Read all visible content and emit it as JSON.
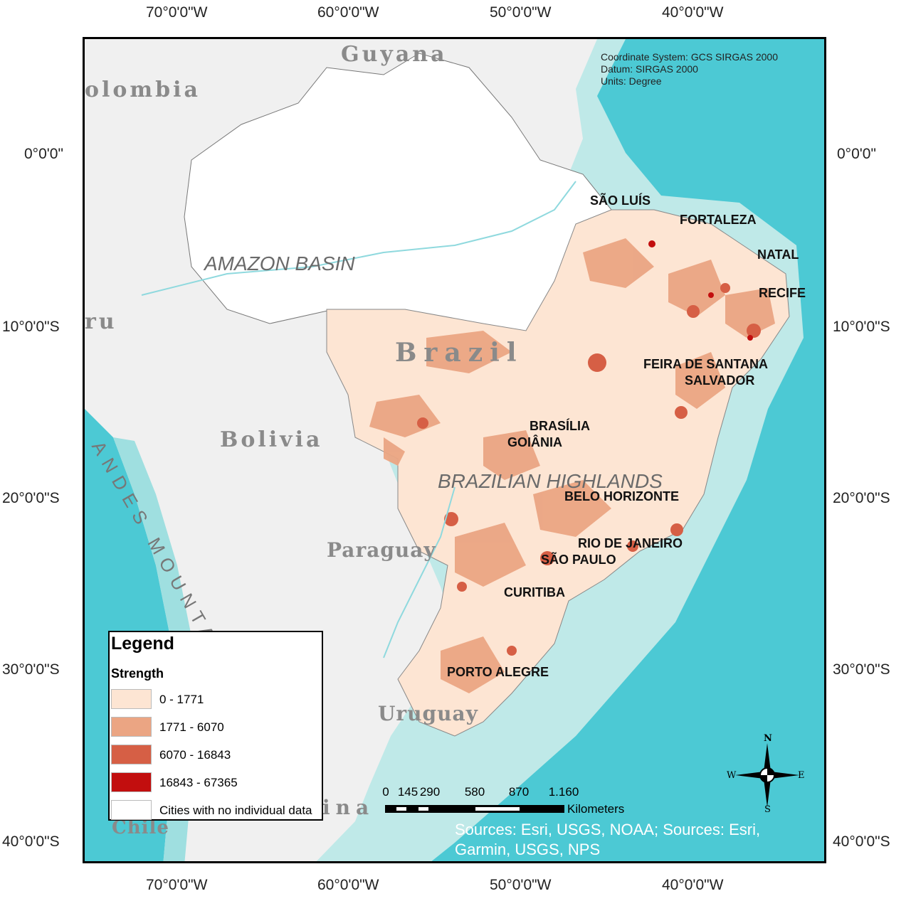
{
  "axes": {
    "top_lon_labels": [
      "70°0'0\"W",
      "60°0'0\"W",
      "50°0'0\"W",
      "40°0'0\"W"
    ],
    "bottom_lon_labels": [
      "70°0'0\"W",
      "60°0'0\"W",
      "50°0'0\"W",
      "40°0'0\"W"
    ],
    "left_lat_labels": [
      "0°0'0\"",
      "10°0'0\"S",
      "20°0'0\"S",
      "30°0'0\"S",
      "40°0'0\"S"
    ],
    "right_lat_labels": [
      "0°0'0\"",
      "10°0'0\"S",
      "20°0'0\"S",
      "30°0'0\"S",
      "40°0'0\"S"
    ]
  },
  "metadata": {
    "coordinate_system": "Coordinate System: GCS SIRGAS 2000",
    "datum": "Datum: SIRGAS 2000",
    "units": "Units: Degree"
  },
  "countries": {
    "guyana": "Guyana",
    "colombia": "olombia",
    "peru": "ru",
    "brazil": "Brazil",
    "bolivia": "Bolivia",
    "paraguay": "Paraguay",
    "uruguay": "Uruguay",
    "argentina": "ina",
    "chile": "Chile"
  },
  "regions": {
    "amazon": "AMAZON BASIN",
    "highlands": "BRAZILIAN HIGHLANDS",
    "andes": "ANDES MOUNTAINS"
  },
  "cities": {
    "sao_luis": "SÃO LUÍS",
    "fortaleza": "FORTALEZA",
    "natal": "NATAL",
    "recife": "RECIFE",
    "feira": "FEIRA DE SANTANA",
    "salvador": "SALVADOR",
    "brasilia": "BRASÍLIA",
    "goiania": "GOIÂNIA",
    "belo_horizonte": "BELO HORIZONTE",
    "rio": "RIO DE JANEIRO",
    "sao_paulo": "SÃO PAULO",
    "curitiba": "CURITIBA",
    "porto_alegre": "PORTO ALEGRE"
  },
  "legend": {
    "title": "Legend",
    "subtitle": "Strength",
    "items": [
      {
        "label": "0 - 1771",
        "color": "#fde5d3"
      },
      {
        "label": "1771 - 6070",
        "color": "#eba583"
      },
      {
        "label": "6070 - 16843",
        "color": "#d65f45"
      },
      {
        "label": "16843 - 67365",
        "color": "#c20e0e"
      },
      {
        "label": "Cities with no individual data",
        "color": "#ffffff"
      }
    ]
  },
  "scale": {
    "ticks": [
      "0",
      "145",
      "290",
      "580",
      "870",
      "1.160"
    ],
    "unit": "Kilometers"
  },
  "compass": {
    "n": "N",
    "s": "S",
    "e": "E",
    "w": "W"
  },
  "sources": "Sources: Esri, USGS, NOAA; Sources: Esri, Garmin, USGS, NPS",
  "colors": {
    "ocean_deep": "#4cc9d4",
    "ocean_shelf": "#bfe9e8",
    "land_other": "#f2f2f2",
    "brazil_nodata": "#ffffff",
    "class1": "#fde5d3",
    "class2": "#eba583",
    "class3": "#d65f45",
    "class4": "#c20e0e"
  }
}
